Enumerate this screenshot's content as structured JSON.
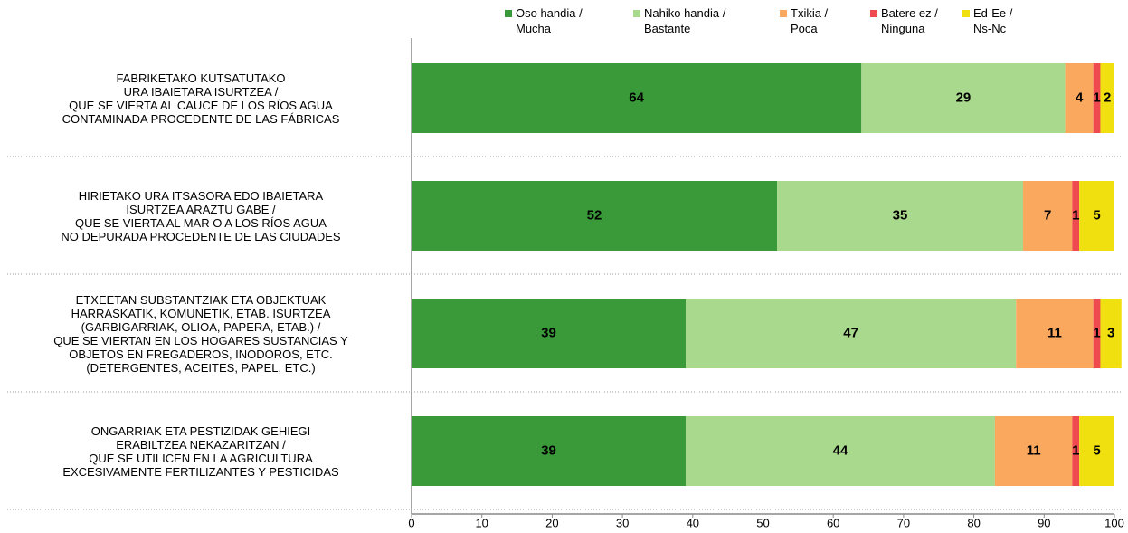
{
  "chart_data": {
    "type": "stacked_barh",
    "categories": [
      "FABRIKETAKO KUTSATUTAKO\nURA IBAIETARA ISURTZEA /\nQUE SE VIERTA AL CAUCE DE LOS RÍOS AGUA\nCONTAMINADA PROCEDENTE DE LAS FÁBRICAS",
      "HIRIETAKO URA ITSASORA EDO IBAIETARA\nISURTZEA ARAZTU GABE /\nQUE SE VIERTA AL MAR O A LOS RÍOS AGUA\nNO DEPURADA PROCEDENTE DE LAS CIUDADES",
      "ETXEETAN SUBSTANTZIAK ETA OBJEKTUAK\nHARRASKATIK, KOMUNETIK, ETAB. ISURTZEA\n(GARBIGARRIAK, OLIOA, PAPERA, ETAB.) /\nQUE SE VIERTAN EN LOS HOGARES SUSTANCIAS Y\nOBJETOS EN FREGADEROS, INODOROS, ETC.\n(DETERGENTES, ACEITES, PAPEL, ETC.)",
      "ONGARRIAK ETA PESTIZIDAK GEHIEGI\nERABILTZEA NEKAZARITZAN /\nQUE SE UTILICEN EN LA AGRICULTURA\nEXCESIVAMENTE FERTILIZANTES Y PESTICIDAS"
    ],
    "series": [
      {
        "name": "Oso handia /\nMucha",
        "color": "#3a9a3a",
        "values": [
          64,
          52,
          39,
          39
        ]
      },
      {
        "name": "Nahiko handia /\nBastante",
        "color": "#a9d98c",
        "values": [
          29,
          35,
          47,
          44
        ]
      },
      {
        "name": "Txikia /\nPoca",
        "color": "#f9a85e",
        "values": [
          4,
          7,
          11,
          11
        ]
      },
      {
        "name": "Batere ez /\nNinguna",
        "color": "#ef4a50",
        "values": [
          1,
          1,
          1,
          1
        ]
      },
      {
        "name": "Ed-Ee /\nNs-Nc",
        "color": "#f0e010",
        "values": [
          2,
          5,
          3,
          5
        ]
      }
    ],
    "xlim": [
      0,
      100
    ],
    "xticks": [
      0,
      10,
      20,
      30,
      40,
      50,
      60,
      70,
      80,
      90,
      100
    ],
    "legend": "top"
  }
}
